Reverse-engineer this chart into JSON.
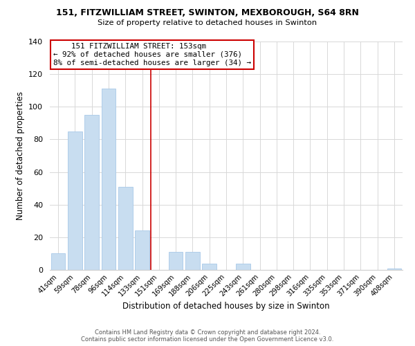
{
  "title_line1": "151, FITZWILLIAM STREET, SWINTON, MEXBOROUGH, S64 8RN",
  "title_line2": "Size of property relative to detached houses in Swinton",
  "xlabel": "Distribution of detached houses by size in Swinton",
  "ylabel": "Number of detached properties",
  "bar_labels": [
    "41sqm",
    "59sqm",
    "78sqm",
    "96sqm",
    "114sqm",
    "133sqm",
    "151sqm",
    "169sqm",
    "188sqm",
    "206sqm",
    "225sqm",
    "243sqm",
    "261sqm",
    "280sqm",
    "298sqm",
    "316sqm",
    "335sqm",
    "353sqm",
    "371sqm",
    "390sqm",
    "408sqm"
  ],
  "bar_values": [
    10,
    85,
    95,
    111,
    51,
    24,
    0,
    11,
    11,
    4,
    0,
    4,
    0,
    0,
    0,
    0,
    0,
    0,
    0,
    0,
    1
  ],
  "highlight_index": 6,
  "bar_color": "#c8ddf0",
  "bar_edge_color": "#a8c8e8",
  "ylim": [
    0,
    140
  ],
  "yticks": [
    0,
    20,
    40,
    60,
    80,
    100,
    120,
    140
  ],
  "annotation_title": "151 FITZWILLIAM STREET: 153sqm",
  "annotation_line1": "← 92% of detached houses are smaller (376)",
  "annotation_line2": "8% of semi-detached houses are larger (34) →",
  "footer_line1": "Contains HM Land Registry data © Crown copyright and database right 2024.",
  "footer_line2": "Contains public sector information licensed under the Open Government Licence v3.0.",
  "annotation_box_facecolor": "#ffffff",
  "annotation_box_edgecolor": "#cc0000",
  "red_line_color": "#cc0000",
  "grid_color": "#d8d8d8",
  "spine_color": "#cccccc"
}
